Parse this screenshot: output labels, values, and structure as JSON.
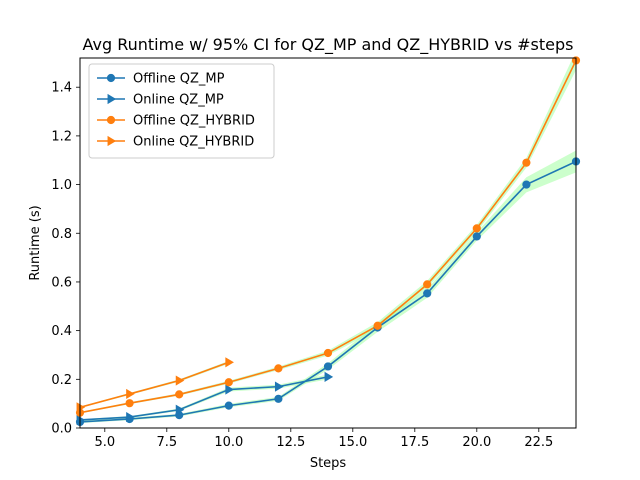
{
  "chart_data": {
    "type": "line",
    "title": "Avg Runtime w/ 95% CI for QZ_MP and QZ_HYBRID vs #steps",
    "xlabel": "Steps",
    "ylabel": "Runtime (s)",
    "xlim": [
      4,
      24
    ],
    "ylim": [
      0,
      1.52
    ],
    "xticks": [
      5.0,
      7.5,
      10.0,
      12.5,
      15.0,
      17.5,
      20.0,
      22.5
    ],
    "xtick_labels": [
      "5.0",
      "7.5",
      "10.0",
      "12.5",
      "15.0",
      "17.5",
      "20.0",
      "22.5"
    ],
    "yticks": [
      0.0,
      0.2,
      0.4,
      0.6,
      0.8,
      1.0,
      1.2,
      1.4
    ],
    "ytick_labels": [
      "0.0",
      "0.2",
      "0.4",
      "0.6",
      "0.8",
      "1.0",
      "1.2",
      "1.4"
    ],
    "legend_position": "top-left",
    "grid": false,
    "ci_color": "#aaffaa",
    "series": [
      {
        "name": "Offline QZ_MP",
        "color": "#1f77b4",
        "marker": "circle",
        "x": [
          4,
          6,
          8,
          10,
          12,
          14,
          16,
          18,
          20,
          22,
          24
        ],
        "y": [
          0.025,
          0.037,
          0.053,
          0.092,
          0.12,
          0.253,
          0.413,
          0.553,
          0.787,
          1.0,
          1.095
        ],
        "ci_low": [
          0.02,
          0.032,
          0.047,
          0.085,
          0.112,
          0.24,
          0.395,
          0.535,
          0.77,
          0.968,
          1.05
        ],
        "ci_high": [
          0.03,
          0.042,
          0.058,
          0.099,
          0.128,
          0.266,
          0.431,
          0.571,
          0.804,
          1.03,
          1.14
        ]
      },
      {
        "name": "Online QZ_MP",
        "color": "#1f77b4",
        "marker": "triangle-right",
        "x": [
          4,
          6,
          8,
          10,
          12,
          14
        ],
        "y": [
          0.033,
          0.045,
          0.075,
          0.158,
          0.17,
          0.21
        ],
        "ci_low": [
          0.03,
          0.041,
          0.07,
          0.15,
          0.162,
          0.2
        ],
        "ci_high": [
          0.036,
          0.049,
          0.08,
          0.166,
          0.178,
          0.22
        ]
      },
      {
        "name": "Offline QZ_HYBRID",
        "color": "#ff7f0e",
        "marker": "circle",
        "x": [
          4,
          6,
          8,
          10,
          12,
          14,
          16,
          18,
          20,
          22,
          24
        ],
        "y": [
          0.063,
          0.102,
          0.138,
          0.188,
          0.245,
          0.308,
          0.42,
          0.59,
          0.82,
          1.09,
          1.51
        ],
        "ci_low": [
          0.06,
          0.098,
          0.133,
          0.182,
          0.238,
          0.298,
          0.405,
          0.575,
          0.805,
          1.07,
          1.47
        ],
        "ci_high": [
          0.066,
          0.106,
          0.143,
          0.194,
          0.252,
          0.318,
          0.435,
          0.605,
          0.835,
          1.11,
          1.55
        ]
      },
      {
        "name": "Online QZ_HYBRID",
        "color": "#ff7f0e",
        "marker": "triangle-right",
        "x": [
          4,
          6,
          8,
          10
        ],
        "y": [
          0.085,
          0.14,
          0.195,
          0.27
        ],
        "ci_low": [
          0.082,
          0.136,
          0.19,
          0.264
        ],
        "ci_high": [
          0.088,
          0.144,
          0.2,
          0.276
        ]
      }
    ]
  }
}
